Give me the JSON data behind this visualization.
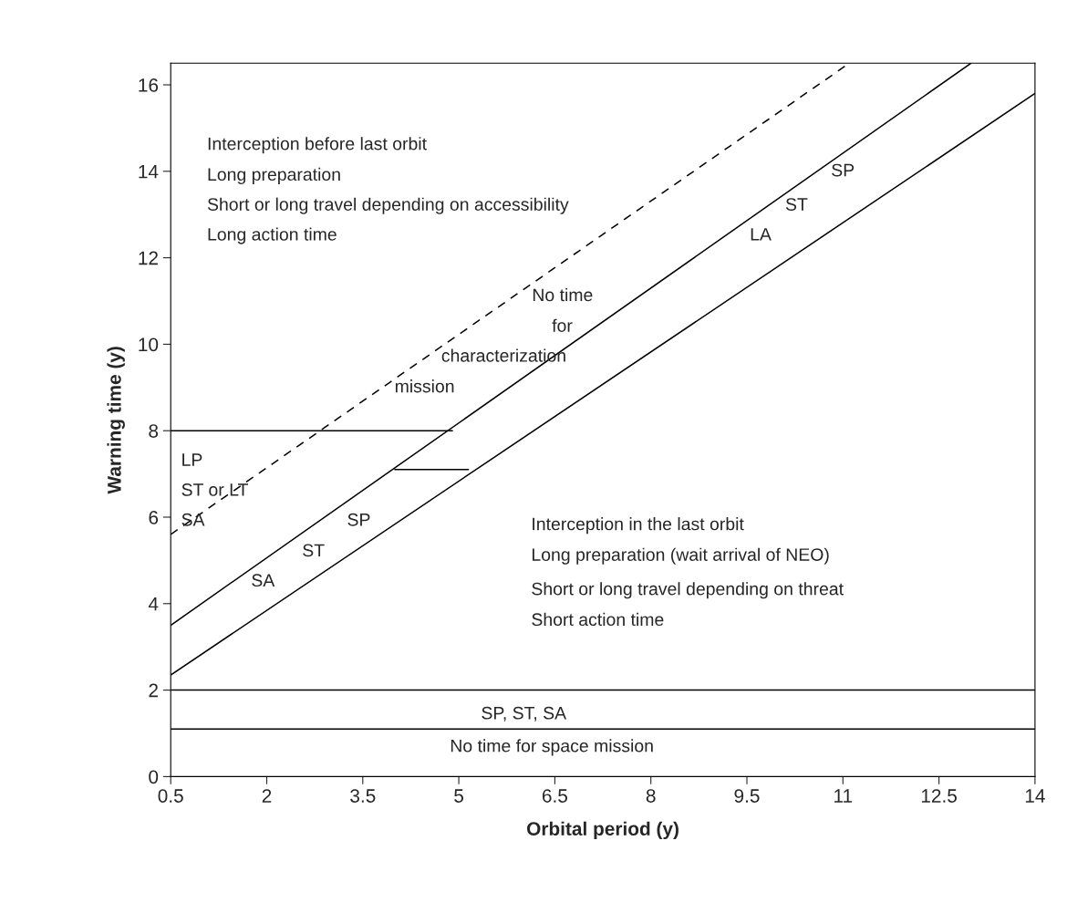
{
  "chart_data": {
    "type": "line",
    "xlabel": "Orbital period (y)",
    "ylabel": "Warning time (y)",
    "xlim": [
      0.5,
      14
    ],
    "ylim": [
      0,
      16.5
    ],
    "xticks": [
      0.5,
      2,
      3.5,
      5,
      6.5,
      8,
      9.5,
      11,
      12.5,
      14
    ],
    "yticks": [
      0,
      2,
      4,
      6,
      8,
      10,
      12,
      14,
      16
    ],
    "grid": false,
    "marker": "none",
    "series": [
      {
        "color": "#000000",
        "x": [
          0.5,
          14
        ],
        "values": [
          2.35,
          15.8
        ],
        "line_style": "solid"
      },
      {
        "color": "#000000",
        "x": [
          0.5,
          13.0
        ],
        "values": [
          3.5,
          16.5
        ],
        "line_style": "solid"
      },
      {
        "color": "#000000",
        "x": [
          0.5,
          11.1
        ],
        "values": [
          5.6,
          16.5
        ],
        "line_style": "dashed"
      },
      {
        "color": "#000000",
        "x": [
          0.5,
          4.9
        ],
        "values": [
          8,
          8
        ],
        "line_style": "solid"
      },
      {
        "color": "#000000",
        "x": [
          4.0,
          5.15
        ],
        "values": [
          7.1,
          7.1
        ],
        "line_style": "solid"
      },
      {
        "color": "#000000",
        "x": [
          0.5,
          14
        ],
        "values": [
          2,
          2
        ],
        "line_style": "solid"
      },
      {
        "color": "#000000",
        "x": [
          0.5,
          14
        ],
        "values": [
          1.1,
          1.1
        ],
        "line_style": "solid"
      }
    ],
    "annotations": [
      "Interception before last orbit",
      "Long preparation",
      "Short or long travel depending on accessibility",
      "Long action time",
      "No time",
      "for",
      "characterization",
      "mission",
      "LP",
      "ST or LT",
      "SA",
      "SA",
      "ST",
      "SP",
      "LA",
      "ST",
      "SP",
      "Interception in the last orbit",
      "Long preparation (wait arrival of NEO)",
      "Short or long travel depending on threat",
      "Short action time",
      "SP, ST, SA",
      "No time for space mission"
    ]
  }
}
